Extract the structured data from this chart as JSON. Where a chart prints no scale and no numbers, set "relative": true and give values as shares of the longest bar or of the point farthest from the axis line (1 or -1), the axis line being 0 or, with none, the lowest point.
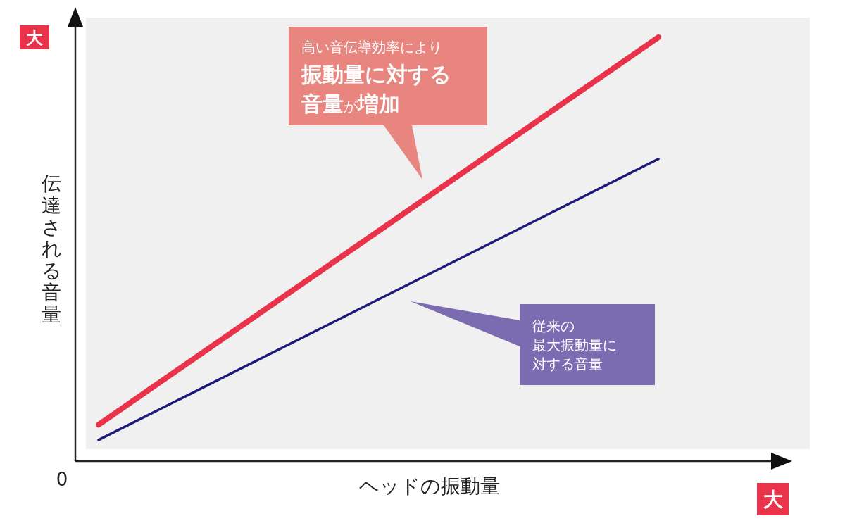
{
  "chart_data": {
    "type": "line",
    "relative": true,
    "xlabel": "ヘッドの振動量",
    "ylabel": "伝達される音量",
    "categories": [
      null,
      null
    ],
    "series": [
      {
        "color": "#e8334a",
        "values": [
          0.086,
          1
        ]
      },
      {
        "color": "#1c1a7a",
        "values": [
          0.05,
          0.713
        ]
      }
    ],
    "annotations": [
      "高い音伝導効率により",
      "**振動量に対する**",
      "**音量**が**増加**",
      "従来の",
      "最大振動量に",
      "対する音量",
      "0",
      "大",
      "大"
    ],
    "marker": "none",
    "line_style": "solid"
  }
}
